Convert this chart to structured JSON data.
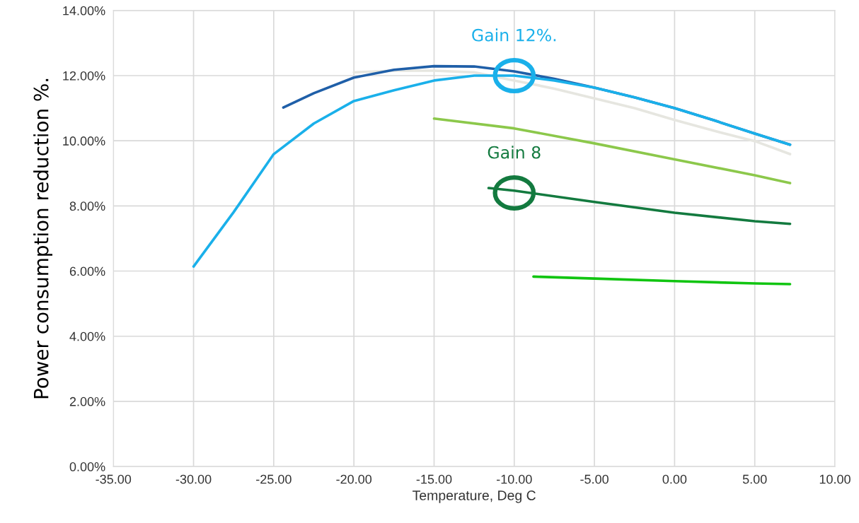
{
  "chart_data": {
    "type": "line",
    "xlabel": "Temperature, Deg C",
    "ylabel": "Power consumption reduction %.",
    "xlim": [
      -35,
      10
    ],
    "ylim": [
      0,
      14
    ],
    "xticks": [
      {
        "value": -35,
        "label": "-35.00"
      },
      {
        "value": -30,
        "label": "-30.00"
      },
      {
        "value": -25,
        "label": "-25.00"
      },
      {
        "value": -20,
        "label": "-20.00"
      },
      {
        "value": -15,
        "label": "-15.00"
      },
      {
        "value": -10,
        "label": "-10.00"
      },
      {
        "value": -5,
        "label": "-5.00"
      },
      {
        "value": 0,
        "label": "0.00"
      },
      {
        "value": 5,
        "label": "5.00"
      },
      {
        "value": 10,
        "label": "10.00"
      }
    ],
    "yticks": [
      {
        "value": 0,
        "label": "0.00%"
      },
      {
        "value": 2,
        "label": "2.00%"
      },
      {
        "value": 4,
        "label": "4.00%"
      },
      {
        "value": 6,
        "label": "6.00%"
      },
      {
        "value": 8,
        "label": "8.00%"
      },
      {
        "value": 10,
        "label": "10.00%"
      },
      {
        "value": 12,
        "label": "12.00%"
      },
      {
        "value": 14,
        "label": "14.00%"
      }
    ],
    "grid": true,
    "marker": "none",
    "line_style": "solid",
    "series": [
      {
        "color": "#e6e6e0",
        "x": [
          -20,
          -17.5,
          -15,
          -12.5,
          -10,
          -7.5,
          -5,
          -2.5,
          0,
          2.5,
          5,
          7.2
        ],
        "values": [
          12.1,
          12.15,
          12.15,
          12.1,
          11.85,
          11.6,
          11.3,
          11.0,
          10.64,
          10.3,
          9.99,
          9.59
        ]
      },
      {
        "color": "#1f5fa8",
        "x": [
          -24.4,
          -22.5,
          -20,
          -17.5,
          -15,
          -12.5,
          -10,
          -7.5,
          -5,
          -2.5,
          0,
          2.5,
          5,
          7.2
        ],
        "values": [
          11.02,
          11.46,
          11.94,
          12.18,
          12.29,
          12.28,
          12.13,
          11.9,
          11.63,
          11.33,
          11.0,
          10.62,
          10.22,
          9.88
        ]
      },
      {
        "color": "#1ab0ea",
        "x": [
          -30,
          -27.5,
          -25,
          -22.5,
          -20,
          -17.5,
          -15,
          -12.5,
          -10,
          -7.5,
          -5,
          -2.5,
          0,
          2.5,
          5,
          7.2
        ],
        "values": [
          6.14,
          7.81,
          9.59,
          10.53,
          11.22,
          11.55,
          11.85,
          12.0,
          12.0,
          11.85,
          11.63,
          11.33,
          11.0,
          10.62,
          10.22,
          9.88
        ]
      },
      {
        "color": "#8cc84b",
        "x": [
          -15,
          -10,
          -5,
          0,
          5,
          7.2
        ],
        "values": [
          10.68,
          10.38,
          9.92,
          9.43,
          8.94,
          8.7
        ]
      },
      {
        "color": "#137a3f",
        "x": [
          -11.6,
          -10,
          -5,
          0,
          5,
          7.2
        ],
        "values": [
          8.55,
          8.47,
          8.12,
          7.79,
          7.53,
          7.45
        ]
      },
      {
        "color": "#11c511",
        "x": [
          -8.8,
          -5,
          0,
          5,
          7.2
        ],
        "values": [
          5.83,
          5.77,
          5.69,
          5.62,
          5.6
        ]
      }
    ],
    "annotations": [
      {
        "text": "Gain 12%.",
        "x": -10,
        "y": 12.0
      },
      {
        "text": "Gain 8",
        "x": -10,
        "y": 8.4
      }
    ]
  }
}
